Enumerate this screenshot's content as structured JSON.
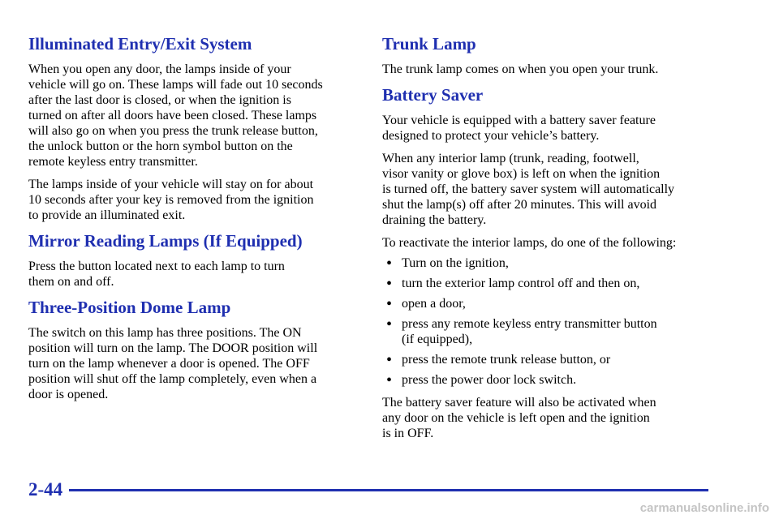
{
  "left": {
    "sections": [
      {
        "heading": "Illuminated Entry/Exit System",
        "paragraphs": [
          [
            "When you open any door, the lamps inside of your",
            "vehicle will go on. These lamps will fade out 10 seconds",
            "after the last door is closed, or when the ignition is",
            "turned on after all doors have been closed. These lamps",
            "will also go on when you press the trunk release button,",
            "the unlock button or the horn symbol button on the",
            "remote keyless entry transmitter."
          ],
          [
            "The lamps inside of your vehicle will stay on for about",
            "10 seconds after your key is removed from the ignition",
            "to provide an illuminated exit."
          ]
        ]
      },
      {
        "heading": "Mirror Reading Lamps (If Equipped)",
        "paragraphs": [
          [
            "Press the button located next to each lamp to turn",
            "them on and off."
          ]
        ]
      },
      {
        "heading": "Three-Position Dome Lamp",
        "paragraphs": [
          [
            "The switch on this lamp has three positions. The ON",
            "position will turn on the lamp. The DOOR position will",
            "turn on the lamp whenever a door is opened. The OFF",
            "position will shut off the lamp completely, even when a",
            "door is opened."
          ]
        ]
      }
    ]
  },
  "right": {
    "sections": [
      {
        "heading": "Trunk Lamp",
        "paragraphs": [
          [
            "The trunk lamp comes on when you open your trunk."
          ]
        ]
      },
      {
        "heading": "Battery Saver",
        "paragraphs": [
          [
            "Your vehicle is equipped with a battery saver feature",
            "designed to protect your vehicle’s battery."
          ],
          [
            "When any interior lamp (trunk, reading, footwell,",
            "visor vanity or glove box) is left on when the ignition",
            "is turned off, the battery saver system will automatically",
            "shut the lamp(s) off after 20 minutes. This will avoid",
            "draining the battery."
          ],
          [
            "To reactivate the interior lamps, do one of the following:"
          ]
        ],
        "bullets": [
          [
            "Turn on the ignition,"
          ],
          [
            "turn the exterior lamp control off and then on,"
          ],
          [
            "open a door,"
          ],
          [
            "press any remote keyless entry transmitter button",
            "(if equipped),"
          ],
          [
            "press the remote trunk release button, or"
          ],
          [
            "press the power door lock switch."
          ]
        ],
        "closing": [
          [
            "The battery saver feature will also be activated when",
            "any door on the vehicle is left open and the ignition",
            "is in OFF."
          ]
        ]
      }
    ]
  },
  "page": {
    "number": "2-44"
  },
  "watermark": "carmanualsonline.info"
}
